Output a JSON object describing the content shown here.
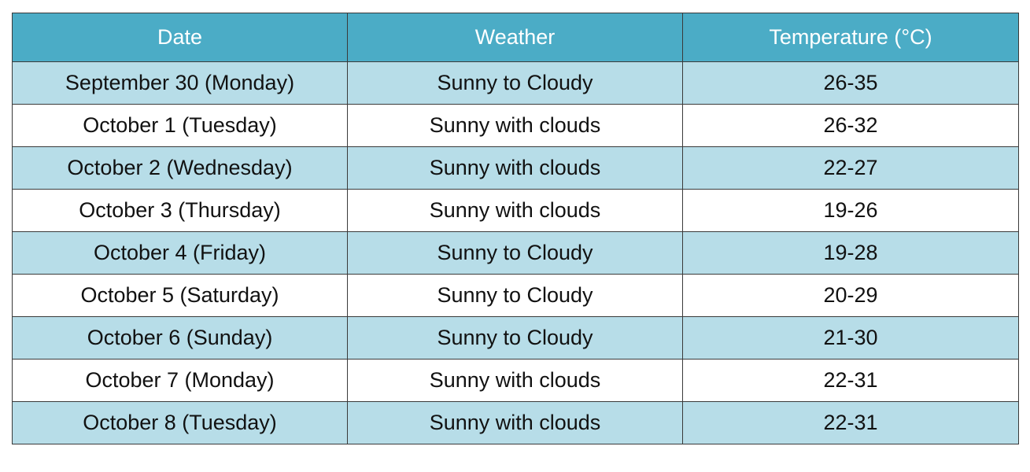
{
  "table": {
    "headers": [
      "Date",
      "Weather",
      "Temperature (°C)"
    ],
    "rows": [
      [
        "September 30 (Monday)",
        "Sunny to Cloudy",
        "26-35"
      ],
      [
        "October 1 (Tuesday)",
        "Sunny with clouds",
        "26-32"
      ],
      [
        "October 2 (Wednesday)",
        "Sunny with clouds",
        "22-27"
      ],
      [
        "October 3 (Thursday)",
        "Sunny with clouds",
        "19-26"
      ],
      [
        "October 4 (Friday)",
        "Sunny to Cloudy",
        "19-28"
      ],
      [
        "October 5 (Saturday)",
        "Sunny to Cloudy",
        "20-29"
      ],
      [
        "October 6 (Sunday)",
        "Sunny to Cloudy",
        "21-30"
      ],
      [
        "October 7 (Monday)",
        "Sunny with clouds",
        "22-31"
      ],
      [
        "October 8 (Tuesday)",
        "Sunny with clouds",
        "22-31"
      ]
    ],
    "colors": {
      "header_bg": "#4bacc6",
      "band_bg": "#b7dde8",
      "plain_bg": "#ffffff"
    }
  }
}
